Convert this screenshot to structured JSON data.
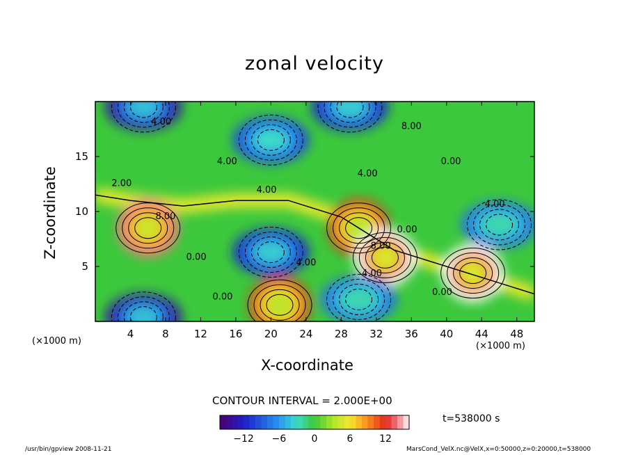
{
  "title": "zonal velocity",
  "chart_data": {
    "type": "heatmap",
    "title": "zonal velocity",
    "xlabel": "X-coordinate",
    "ylabel": "Z-coordinate",
    "x_unit": "(×1000 m)",
    "xlim": [
      0,
      50
    ],
    "ylim": [
      0,
      20
    ],
    "x_ticks": [
      4,
      8,
      12,
      16,
      20,
      24,
      28,
      32,
      36,
      40,
      44,
      48
    ],
    "y_ticks": [
      5,
      10,
      15
    ],
    "contour_interval": "CONTOUR INTERVAL = 2.000E+00",
    "colorbar": {
      "min": -16,
      "max": 16,
      "ticks": [
        -12,
        -6,
        0,
        6,
        12
      ]
    },
    "contour_labels": [
      {
        "text": "4.00",
        "x": 7.5,
        "z": 17.9
      },
      {
        "text": "8.00",
        "x": 36,
        "z": 17.5
      },
      {
        "text": "4.00",
        "x": 15,
        "z": 14.3
      },
      {
        "text": "0.00",
        "x": 40.5,
        "z": 14.3
      },
      {
        "text": "4.00",
        "x": 31,
        "z": 13.2
      },
      {
        "text": "2.00",
        "x": 3,
        "z": 12.3
      },
      {
        "text": "4.00",
        "x": 19.5,
        "z": 11.7
      },
      {
        "text": "4.00",
        "x": 45.5,
        "z": 10.4
      },
      {
        "text": "8.00",
        "x": 8,
        "z": 9.3
      },
      {
        "text": "0.00",
        "x": 35.5,
        "z": 8.1
      },
      {
        "text": "8.00",
        "x": 32.5,
        "z": 6.6
      },
      {
        "text": "0.00",
        "x": 11.5,
        "z": 5.6
      },
      {
        "text": "4.00",
        "x": 24,
        "z": 5.1
      },
      {
        "text": "4.00",
        "x": 31.5,
        "z": 4.1
      },
      {
        "text": "0.00",
        "x": 39.5,
        "z": 2.4
      },
      {
        "text": "0.00",
        "x": 14.5,
        "z": 2.0
      }
    ],
    "features": [
      {
        "x": 6,
        "z": 8.5,
        "value": 14
      },
      {
        "x": 21,
        "z": 1.5,
        "value": 12
      },
      {
        "x": 30,
        "z": 8.5,
        "value": 12
      },
      {
        "x": 33,
        "z": 5.8,
        "value": 16
      },
      {
        "x": 43,
        "z": 4.4,
        "value": 16
      },
      {
        "x": 20,
        "z": 6.3,
        "value": -12
      },
      {
        "x": 5.5,
        "z": 19.5,
        "value": -14
      },
      {
        "x": 5.5,
        "z": 0.4,
        "value": -14
      },
      {
        "x": 20,
        "z": 16.5,
        "value": -10
      },
      {
        "x": 29,
        "z": 19.5,
        "value": -12
      },
      {
        "x": 46,
        "z": 8.8,
        "value": -8
      },
      {
        "x": 30,
        "z": 2.0,
        "value": -8
      }
    ]
  },
  "time_label": "t=538000 s",
  "footer_left": "/usr/bin/gpview  2008-11-21",
  "footer_right": "MarsCond_VelX.nc@VelX,x=0:50000,z=0:20000,t=538000"
}
